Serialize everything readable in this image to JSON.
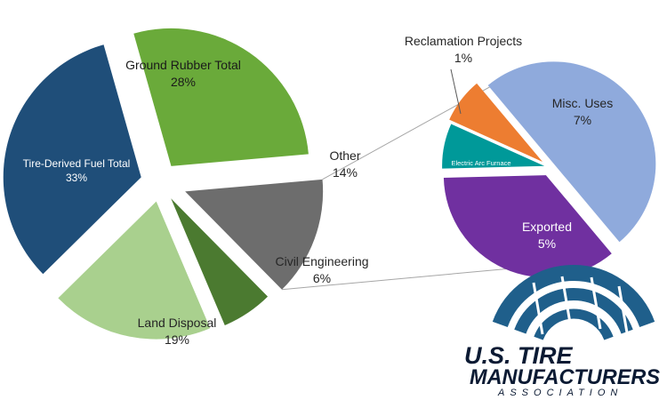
{
  "chart_data": [
    {
      "type": "pie",
      "name": "main",
      "slices": [
        {
          "label": "Ground Rubber Total",
          "value": 28,
          "display": "28%",
          "color": "#6aaa3a"
        },
        {
          "label": "Other",
          "value": 14,
          "display": "14%",
          "color": "#6d6d6d"
        },
        {
          "label": "Civil Engineering",
          "value": 6,
          "display": "6%",
          "color": "#4b7a30"
        },
        {
          "label": "Land Disposal",
          "value": 19,
          "display": "19%",
          "color": "#a9d08e"
        },
        {
          "label": "Tire-Derived Fuel Total",
          "value": 33,
          "display": "33%",
          "color": "#1f4e79"
        }
      ]
    },
    {
      "type": "pie",
      "name": "other-breakdown",
      "slices": [
        {
          "label": "Misc. Uses",
          "value": 7,
          "display": "7%",
          "color": "#8faadc"
        },
        {
          "label": "Exported",
          "value": 5,
          "display": "5%",
          "color": "#7030a0"
        },
        {
          "label": "Electric Arc Furnace",
          "value": 1,
          "display": "1%",
          "color": "#009999"
        },
        {
          "label": "Reclamation Projects",
          "value": 1,
          "display": "1%",
          "color": "#ed7d31"
        }
      ]
    }
  ],
  "logo": {
    "line1": "U.S. TIRE",
    "line2": "MANUFACTURERS",
    "line3": "ASSOCIATION",
    "color": "#0b1a33",
    "arc_color": "#1f5f8b"
  }
}
